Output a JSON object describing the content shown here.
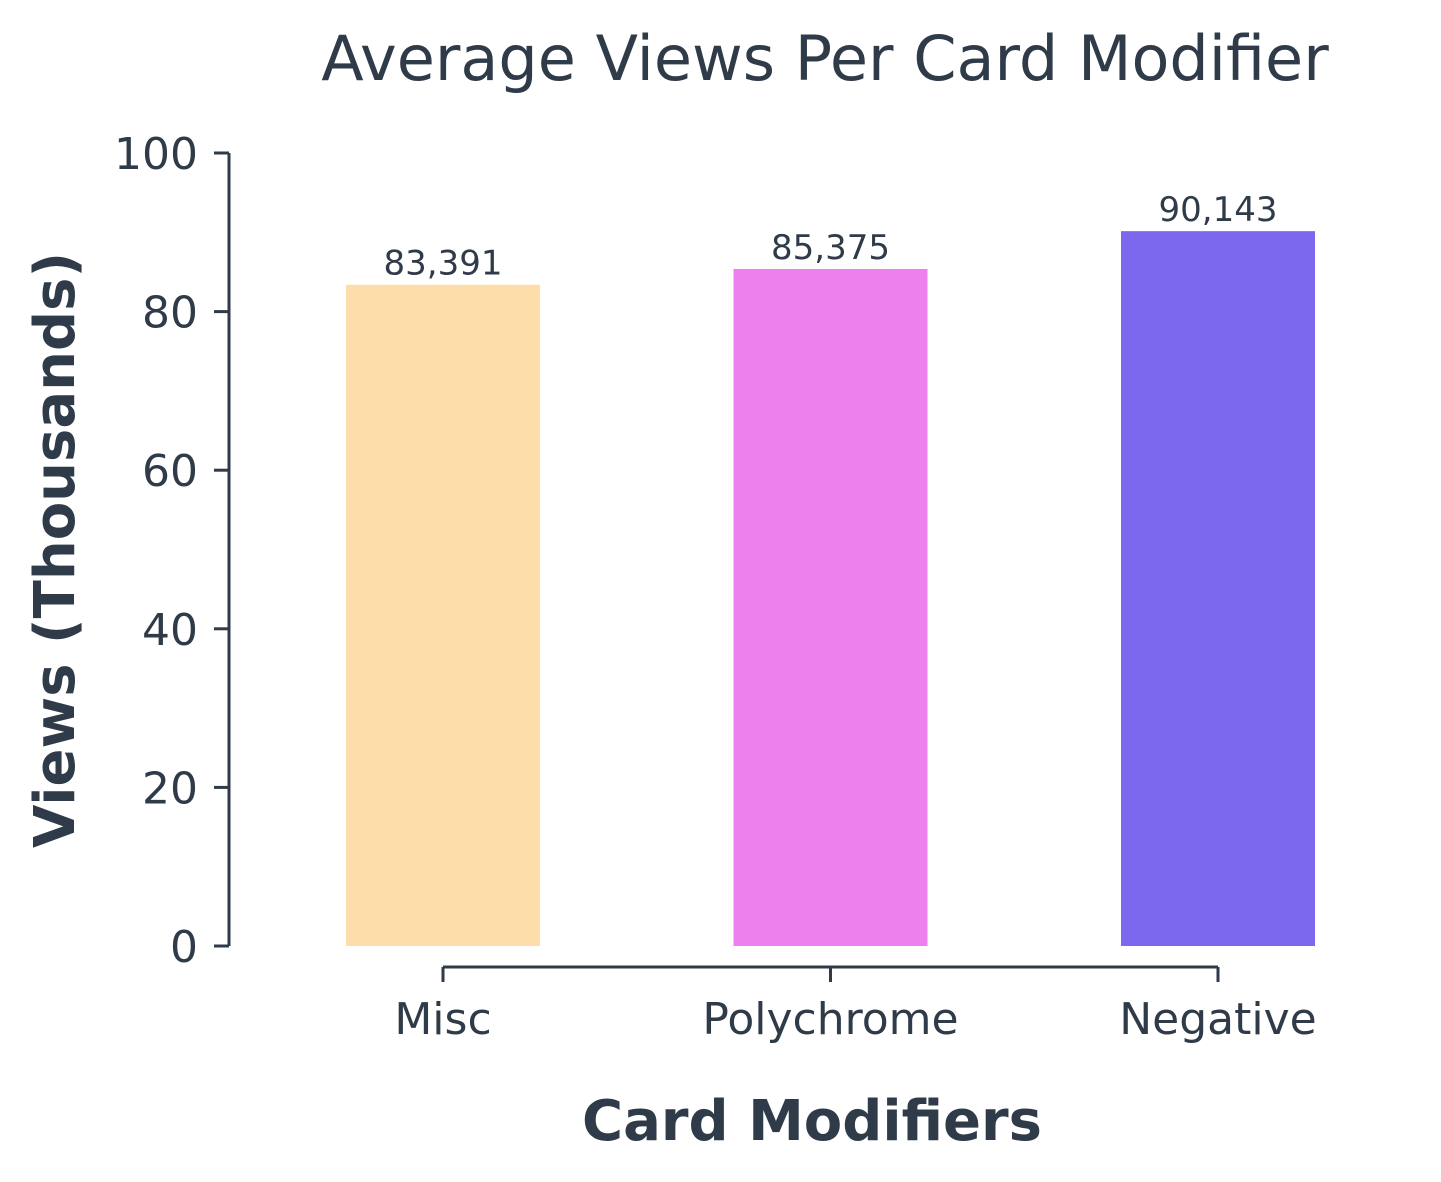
{
  "chart_data": {
    "type": "bar",
    "title": "Average Views Per Card Modifier",
    "xlabel": "Card Modifiers",
    "ylabel": "Views (Thousands)",
    "categories": [
      "Misc",
      "Polychrome",
      "Negative"
    ],
    "values": [
      83.391,
      85.375,
      90.143
    ],
    "value_labels": [
      "83,391",
      "85,375",
      "90,143"
    ],
    "colors": [
      "#fddeab",
      "#ee80ee",
      "#7b68ee"
    ],
    "ylim": [
      0,
      100
    ],
    "yticks": [
      0,
      20,
      40,
      60,
      80,
      100
    ],
    "grid": false,
    "legend": "none"
  },
  "style": {
    "text_color": "#2f3b48",
    "background": "#ffffff"
  }
}
